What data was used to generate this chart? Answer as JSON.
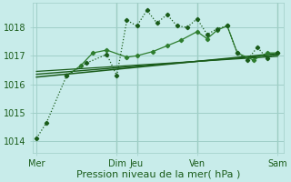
{
  "background_color": "#c8ecea",
  "grid_color": "#a0cfc8",
  "xlabel": "Pression niveau de la mer( hPa )",
  "xlabel_fontsize": 8,
  "yticks": [
    1014,
    1015,
    1016,
    1017,
    1018
  ],
  "ylim": [
    1013.6,
    1018.85
  ],
  "xlim": [
    -0.2,
    12.3
  ],
  "xtick_labels": [
    "Mer",
    "Dim",
    "Jeu",
    "Ven",
    "Sam"
  ],
  "xtick_positions": [
    0,
    4,
    5,
    8,
    12
  ],
  "vline_positions": [
    4,
    5,
    8,
    12
  ],
  "dark_green": "#1a5c1a",
  "mid_green": "#2e7d2e",
  "series1_x": [
    0,
    0.5,
    1.5,
    2.5,
    3.5,
    4.0,
    4.5,
    5.0,
    5.5,
    6.0,
    6.5,
    7.0,
    7.5,
    8.0,
    8.5,
    9.0,
    9.5,
    10.0,
    10.5,
    11.0,
    11.5,
    12.0
  ],
  "series1_y": [
    1014.1,
    1014.65,
    1016.3,
    1016.75,
    1017.05,
    1016.3,
    1018.25,
    1018.05,
    1018.6,
    1018.15,
    1018.45,
    1018.05,
    1018.0,
    1018.3,
    1017.75,
    1017.95,
    1018.05,
    1017.1,
    1016.85,
    1017.3,
    1016.9,
    1017.1
  ],
  "series2_x": [
    1.5,
    2.2,
    2.8,
    3.5,
    4.5,
    5.0,
    5.8,
    6.5,
    7.2,
    8.0,
    8.5,
    9.0,
    9.5,
    10.0,
    10.8,
    11.5,
    12.0
  ],
  "series2_y": [
    1016.3,
    1016.65,
    1017.1,
    1017.2,
    1016.95,
    1017.0,
    1017.15,
    1017.35,
    1017.55,
    1017.85,
    1017.6,
    1017.9,
    1018.05,
    1017.1,
    1016.85,
    1017.1,
    1017.1
  ],
  "trend1_x": [
    0,
    12
  ],
  "trend1_y": [
    1016.25,
    1017.08
  ],
  "trend2_x": [
    0,
    12
  ],
  "trend2_y": [
    1016.35,
    1017.03
  ],
  "trend3_x": [
    0,
    12
  ],
  "trend3_y": [
    1016.45,
    1016.98
  ]
}
